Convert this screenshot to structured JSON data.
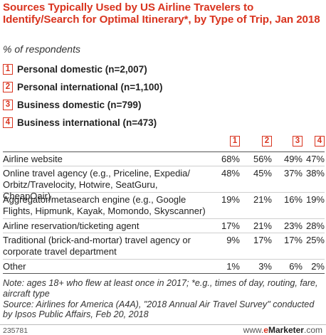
{
  "title": "Sources Typically Used by US Airline Travelers to Identify/Search for Optimal Itinerary*, by Type of Trip, Jan 2018",
  "subtitle": "% of respondents",
  "accent_color": "#d9341f",
  "legend": [
    {
      "num": "1",
      "label": "Personal domestic (n=2,007)"
    },
    {
      "num": "2",
      "label": "Personal international (n=1,100)"
    },
    {
      "num": "3",
      "label": "Business domestic (n=799)"
    },
    {
      "num": "4",
      "label": "Business international (n=473)"
    }
  ],
  "chart_data": {
    "type": "table",
    "columns": [
      "1",
      "2",
      "3",
      "4"
    ],
    "series": [
      {
        "name": "Personal domestic (n=2,007)"
      },
      {
        "name": "Personal international (n=1,100)"
      },
      {
        "name": "Business domestic (n=799)"
      },
      {
        "name": "Business international (n=473)"
      }
    ],
    "rows": [
      {
        "label": "Airline website",
        "values": [
          "68%",
          "56%",
          "49%",
          "47%"
        ]
      },
      {
        "label": "Online travel agency (e.g., Priceline, Expedia/ Orbitz/Travelocity, Hotwire, SeatGuru, CheapOair)",
        "values": [
          "48%",
          "45%",
          "37%",
          "38%"
        ]
      },
      {
        "label": "Aggregator/metasearch engine (e.g., Google Flights, Hipmunk, Kayak, Momondo, Skyscanner)",
        "values": [
          "19%",
          "21%",
          "16%",
          "19%"
        ]
      },
      {
        "label": "Airline reservation/ticketing agent",
        "values": [
          "17%",
          "21%",
          "23%",
          "28%"
        ]
      },
      {
        "label": "Traditional (brick-and-mortar) travel agency or corporate travel department",
        "values": [
          "9%",
          "17%",
          "17%",
          "25%"
        ]
      },
      {
        "label": "Other",
        "values": [
          "1%",
          "3%",
          "6%",
          "2%"
        ]
      }
    ]
  },
  "note": "Note: ages 18+ who flew at least once in 2017; *e.g., times of day, routing, fare, aircraft type",
  "source": "Source: Airlines for America (A4A), \"2018 Annual Air Travel Survey\" conducted by Ipsos Public Affairs, Feb 20, 2018",
  "footer": {
    "id": "235781",
    "site_prefix": "www.",
    "site_e": "e",
    "site_name": "Marketer",
    "site_suffix": ".com"
  }
}
